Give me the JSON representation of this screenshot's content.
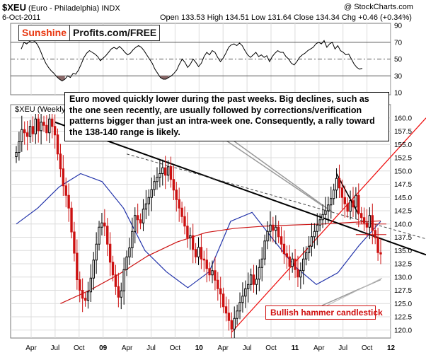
{
  "header": {
    "symbol": "$XEU",
    "name": "(Euro - Philadelphia)",
    "exchange": "INDX",
    "source": "@ StockCharts.com",
    "date": "6-Oct-2011",
    "quote": "Open 133.53  High 134.51  Low 131.64  Close 134.34  Chg +0.46 (+0.34%)",
    "indicator_label": "$XEU (Weekly)"
  },
  "logo": {
    "part1": "Sunshine",
    "part2": "Profits.com/FREE"
  },
  "annotation": "Euro moved quickly lower during the past weeks. Big declines, such as the one seen recently, are usually followed by corrections/verification patterns bigger than just an intra-week one. Consequently, a rally toward the 138-140 range is likely.",
  "hammer_label": "Bullish hammer candlestick",
  "colors": {
    "up": "#000000",
    "down": "#cc1111",
    "ma_short": "#2233aa",
    "ma_long": "#cc1111",
    "rsi": "#000000",
    "rsi_fill": "#8b6a6a",
    "trend_red": "#ee1111"
  },
  "chart_data": [
    {
      "type": "line",
      "name": "RSI",
      "ylim": [
        10,
        90
      ],
      "yticks": [
        10,
        30,
        50,
        70,
        90
      ],
      "levels": [
        30,
        50,
        70
      ],
      "values": [
        62,
        70,
        68,
        71,
        70,
        71,
        67,
        60,
        52,
        45,
        40,
        36,
        33,
        29,
        26,
        24,
        26,
        30,
        28,
        33,
        32,
        37,
        44,
        52,
        57,
        60,
        58,
        56,
        53,
        48,
        51,
        54,
        58,
        62,
        64,
        62,
        65,
        62,
        58,
        55,
        57,
        61,
        64,
        66,
        64,
        60,
        55,
        50,
        45,
        38,
        33,
        28,
        26,
        26,
        28,
        30,
        33,
        37,
        44,
        50,
        46,
        40,
        44,
        50,
        46,
        41,
        45,
        53,
        58,
        55,
        60,
        58,
        52,
        47,
        51,
        57,
        64,
        67,
        68,
        66,
        69,
        66,
        60,
        55,
        52,
        55,
        58,
        53,
        55,
        52,
        54,
        47,
        53,
        57,
        60,
        58,
        58,
        53,
        50,
        45,
        43,
        47,
        52,
        55,
        57,
        60,
        62,
        64,
        68,
        70,
        68,
        72,
        64,
        68,
        70,
        62,
        66,
        60,
        58,
        55,
        56,
        50,
        44,
        40,
        38,
        39
      ]
    },
    {
      "type": "candlestick",
      "name": "$XEU (Weekly)",
      "ylim": [
        118.5,
        162.5
      ],
      "yticks": [
        120,
        122.5,
        125,
        127.5,
        130,
        132.5,
        135,
        137.5,
        140,
        142.5,
        145,
        147.5,
        150,
        152.5,
        155,
        157.5,
        160
      ],
      "xticks": [
        "Apr",
        "Jul",
        "Oct",
        "09",
        "Apr",
        "Jul",
        "Oct",
        "10",
        "Apr",
        "Jul",
        "Oct",
        "11",
        "Apr",
        "Jul",
        "Oct",
        "12"
      ],
      "closes": [
        153.5,
        155.5,
        157.8,
        157.2,
        156.5,
        158.4,
        157,
        159.8,
        157.6,
        159.2,
        158.6,
        157.2,
        159.8,
        158.4,
        156.8,
        153.2,
        150.4,
        147.2,
        145.4,
        143,
        138.5,
        134.5,
        129.5,
        127.5,
        126,
        125.6,
        127.2,
        129.8,
        133.2,
        136.2,
        139.4,
        140.2,
        139.6,
        136.2,
        132.8,
        130.4,
        128.2,
        126.2,
        127.4,
        131.4,
        133.8,
        135.5,
        138.6,
        141.6,
        140.8,
        140.2,
        142.8,
        143.8,
        145,
        146.5,
        148,
        148.8,
        149.5,
        150.6,
        149.2,
        150.8,
        148.4,
        146.4,
        144.6,
        143,
        141.4,
        139.6,
        137.4,
        137.8,
        135.2,
        133.8,
        135.6,
        133.4,
        133.2,
        131.6,
        130.4,
        131.2,
        129.4,
        127.8,
        126.8,
        124.4,
        123.2,
        121.8,
        120.2,
        122.2,
        123.6,
        125.2,
        126.4,
        127.8,
        128.6,
        130.4,
        128.6,
        129.6,
        131.8,
        133.4,
        136.8,
        138.6,
        139.8,
        138.8,
        139.4,
        137.6,
        136.2,
        134.4,
        133.8,
        132,
        133.4,
        131.4,
        130,
        131.2,
        133.4,
        134.6,
        135.8,
        137.6,
        138.6,
        139.8,
        140.8,
        141.8,
        142.5,
        143.6,
        144.8,
        146.4,
        148.6,
        146.8,
        145,
        143.8,
        142.4,
        144.4,
        143.2,
        145.4,
        142,
        141.2,
        140.2,
        139.4,
        141.6,
        138.8,
        137.4,
        134.6,
        134.34
      ],
      "moving_averages": [
        {
          "name": "short",
          "values": [
            140,
            143,
            147,
            149.5,
            148,
            143,
            135,
            131,
            128,
            131,
            140.5,
            142.2,
            137,
            132,
            128.6,
            130.8,
            136,
            140.5
          ]
        },
        {
          "name": "long",
          "values": [
            125,
            127.5,
            130.5,
            134,
            136.6,
            138.4,
            139.2,
            139.6,
            139.8,
            140,
            140.3,
            140.6
          ]
        }
      ],
      "annotation_levels": [
        138,
        140
      ]
    }
  ]
}
